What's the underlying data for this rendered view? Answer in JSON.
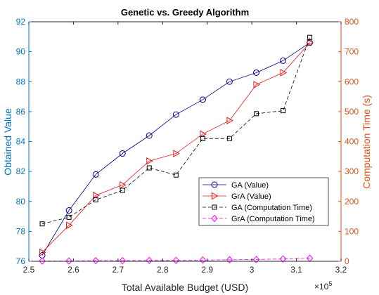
{
  "chart_data": {
    "type": "line",
    "title": "Genetic vs. Greedy Algorithm",
    "xlabel": "Total Available Budget (USD)",
    "x_exponent_label": "×10",
    "x_exponent_power": "5",
    "ylabel_left": "Obtained Value",
    "ylabel_right": "Computation Time (s)",
    "xlim": [
      2.5,
      3.2
    ],
    "ylim_left": [
      76,
      92
    ],
    "ylim_right": [
      0,
      800
    ],
    "x_ticks": [
      "2.5",
      "2.6",
      "2.7",
      "2.8",
      "2.9",
      "3",
      "3.1",
      "3.2"
    ],
    "y_left_ticks": [
      "76",
      "78",
      "80",
      "82",
      "84",
      "86",
      "88",
      "90",
      "92"
    ],
    "y_right_ticks": [
      "0",
      "100",
      "200",
      "300",
      "400",
      "500",
      "600",
      "700",
      "800"
    ],
    "x": [
      2.53,
      2.59,
      2.65,
      2.71,
      2.77,
      2.83,
      2.89,
      2.95,
      3.01,
      3.07,
      3.13
    ],
    "legend_position": "center-right",
    "grid": false,
    "series": [
      {
        "name": "GA (Value)",
        "axis": "left",
        "color": "#00008B",
        "marker": "circle",
        "dash": "solid",
        "values": [
          76.4,
          79.4,
          81.8,
          83.2,
          84.4,
          85.8,
          86.8,
          88.0,
          88.6,
          89.4,
          90.6
        ]
      },
      {
        "name": "GrA (Value)",
        "axis": "left",
        "color": "#E31A1C",
        "marker": "triangle-right",
        "dash": "solid",
        "values": [
          76.6,
          78.4,
          80.4,
          81.1,
          82.7,
          83.2,
          84.5,
          85.4,
          87.8,
          88.6,
          90.6
        ]
      },
      {
        "name": "GA (Computation Time)",
        "axis": "right",
        "color": "#000000",
        "marker": "square",
        "dash": "dashed",
        "values": [
          125,
          147,
          205,
          237,
          312,
          288,
          410,
          410,
          493,
          503,
          748
        ]
      },
      {
        "name": "GrA (Computation Time)",
        "axis": "right",
        "color": "#FF00FF",
        "marker": "diamond",
        "dash": "dashed",
        "values": [
          1,
          1,
          2,
          2,
          3,
          3,
          4,
          5,
          6,
          8,
          10
        ]
      }
    ]
  }
}
